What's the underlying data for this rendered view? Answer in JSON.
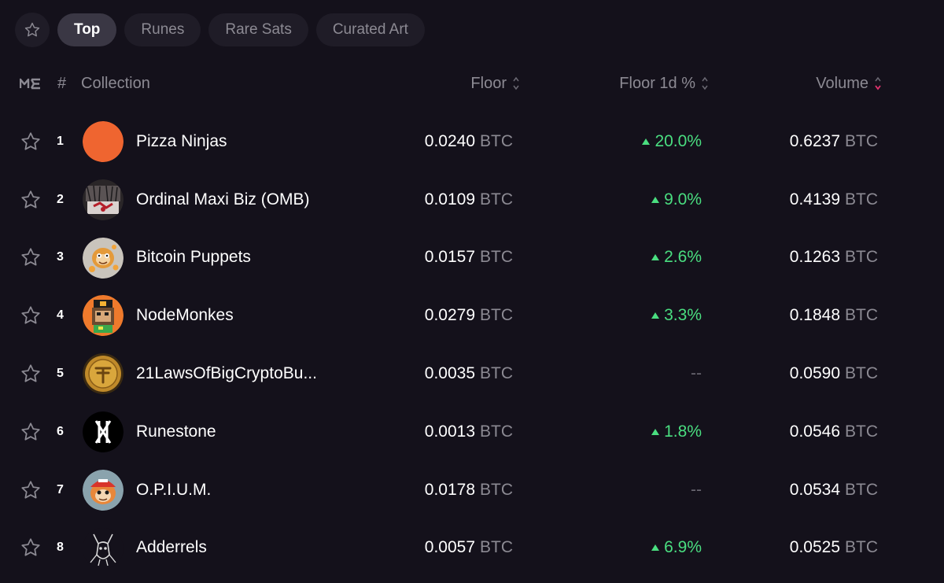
{
  "tabs": {
    "items": [
      {
        "label": "Top",
        "active": true
      },
      {
        "label": "Runes",
        "active": false
      },
      {
        "label": "Rare Sats",
        "active": false
      },
      {
        "label": "Curated Art",
        "active": false
      }
    ]
  },
  "table": {
    "headers": {
      "rank": "#",
      "collection": "Collection",
      "floor": "Floor",
      "floor_1d": "Floor 1d %",
      "volume": "Volume"
    },
    "unit": "BTC",
    "rows": [
      {
        "rank": "1",
        "name": "Pizza Ninjas",
        "floor": "0.0240",
        "change": "20.0%",
        "change_dir": "up",
        "volume": "0.6237"
      },
      {
        "rank": "2",
        "name": "Ordinal Maxi Biz (OMB)",
        "floor": "0.0109",
        "change": "9.0%",
        "change_dir": "up",
        "volume": "0.4139"
      },
      {
        "rank": "3",
        "name": "Bitcoin Puppets",
        "floor": "0.0157",
        "change": "2.6%",
        "change_dir": "up",
        "volume": "0.1263"
      },
      {
        "rank": "4",
        "name": "NodeMonkes",
        "floor": "0.0279",
        "change": "3.3%",
        "change_dir": "up",
        "volume": "0.1848"
      },
      {
        "rank": "5",
        "name": "21LawsOfBigCryptoBu...",
        "floor": "0.0035",
        "change": "--",
        "change_dir": "none",
        "volume": "0.0590"
      },
      {
        "rank": "6",
        "name": "Runestone",
        "floor": "0.0013",
        "change": "1.8%",
        "change_dir": "up",
        "volume": "0.0546"
      },
      {
        "rank": "7",
        "name": "O.P.I.U.M.",
        "floor": "0.0178",
        "change": "--",
        "change_dir": "none",
        "volume": "0.0534"
      },
      {
        "rank": "8",
        "name": "Adderrels",
        "floor": "0.0057",
        "change": "6.9%",
        "change_dir": "up",
        "volume": "0.0525"
      }
    ]
  },
  "colors": {
    "background": "#14111b",
    "positive": "#4ade80",
    "sort_active": "#e0336e",
    "muted": "#8c8a93"
  }
}
